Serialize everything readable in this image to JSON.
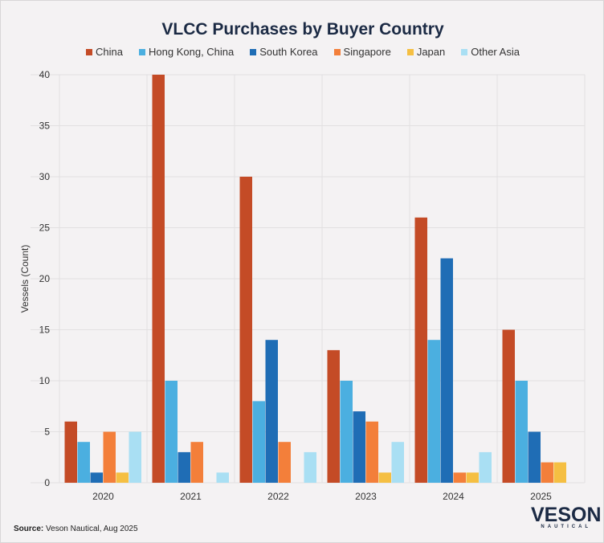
{
  "chart_data": {
    "type": "bar",
    "title": "VLCC Purchases by Buyer Country",
    "xlabel": "",
    "ylabel": "Vessels (Count)",
    "ylim": [
      0,
      40
    ],
    "yticks": [
      0,
      5,
      10,
      15,
      20,
      25,
      30,
      35,
      40
    ],
    "categories": [
      "2020",
      "2021",
      "2022",
      "2023",
      "2024",
      "2025"
    ],
    "series": [
      {
        "name": "China",
        "color": "#c44b26",
        "values": [
          6,
          40,
          30,
          13,
          26,
          15
        ]
      },
      {
        "name": "Hong Kong, China",
        "color": "#4bafe0",
        "values": [
          4,
          10,
          8,
          10,
          14,
          10
        ]
      },
      {
        "name": "South Korea",
        "color": "#1f6db5",
        "values": [
          1,
          3,
          14,
          7,
          22,
          5
        ]
      },
      {
        "name": "Singapore",
        "color": "#f37f3a",
        "values": [
          5,
          4,
          4,
          6,
          1,
          2
        ]
      },
      {
        "name": "Japan",
        "color": "#f5bf42",
        "values": [
          1,
          0,
          0,
          1,
          1,
          2
        ]
      },
      {
        "name": "Other Asia",
        "color": "#a9dff3",
        "values": [
          5,
          1,
          3,
          4,
          3,
          0
        ]
      }
    ],
    "legend_position": "top",
    "grid": true
  },
  "source_label": "Source:",
  "source_text": "Veson Nautical, Aug 2025",
  "logo": {
    "main": "VESON",
    "sub": "NAUTICAL"
  }
}
